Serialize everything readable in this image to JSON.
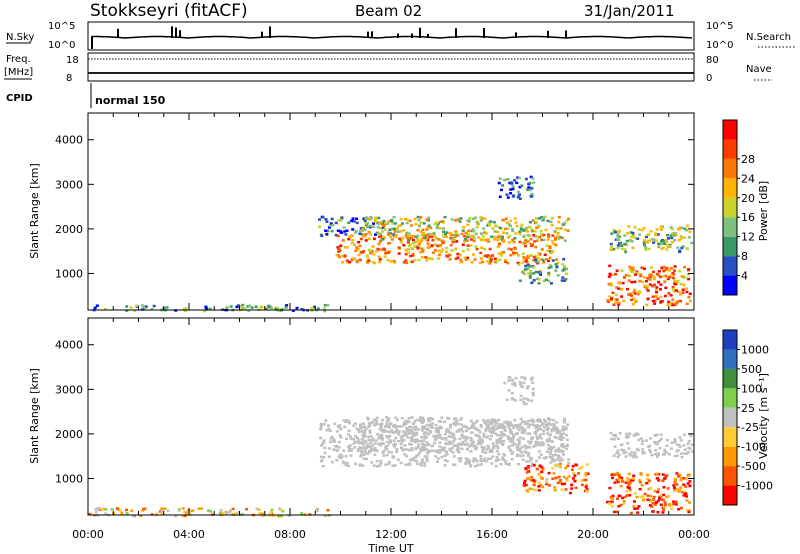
{
  "header": {
    "station": "Stokkseyri (fitACF)",
    "beam": "Beam 02",
    "date": "31/Jan/2011"
  },
  "strips": {
    "nsky_label": "N.Sky",
    "nsky_ticks": [
      "10^5",
      "10^0"
    ],
    "nsearch_label": "N.Search",
    "nsearch_ticks": [
      "10^5",
      "10^0"
    ],
    "freq_label": "Freq.",
    "freq_unit": "[MHz]",
    "freq_ticks": [
      "18",
      "8"
    ],
    "nave_label": "Nave",
    "nave_ticks": [
      "80",
      "0"
    ],
    "cpid_label": "CPID",
    "cpid_value": "normal 150"
  },
  "colors": {
    "power": [
      "#0000ff",
      "#2a4fc0",
      "#3b9a64",
      "#7fc07f",
      "#c8d22a",
      "#ffb400",
      "#ff7800",
      "#ff3c00",
      "#ff0000"
    ],
    "velocity": [
      "#1f3fbf",
      "#2f6fbf",
      "#3f8f3f",
      "#7fcf4f",
      "#c0c0c0",
      "#ffcc33",
      "#ff9900",
      "#ff5500",
      "#ff0000"
    ],
    "ground": "#b4b4b4"
  },
  "chart_data": [
    {
      "type": "heatmap",
      "name": "power-panel",
      "xlabel": "Time UT",
      "ylabel": "Slant Range [km]",
      "x_ticks": [
        "00:00",
        "04:00",
        "08:00",
        "12:00",
        "16:00",
        "20:00",
        "00:00"
      ],
      "xlim_hours": [
        0,
        24
      ],
      "y_ticks": [
        1000,
        2000,
        3000,
        4000
      ],
      "ylim_km": [
        180,
        4600
      ],
      "colorbar": {
        "label": "Power",
        "unit": "[dB]",
        "ticks": [
          4,
          8,
          12,
          16,
          20,
          24,
          28
        ],
        "range": [
          0,
          30
        ]
      },
      "echo_regions": [
        {
          "t0": 9.1,
          "t1": 12.3,
          "r0": 1850,
          "r1": 2300,
          "level": 0.25
        },
        {
          "t0": 9.8,
          "t1": 18.6,
          "r0": 1250,
          "r1": 1900,
          "level": 0.7
        },
        {
          "t0": 10.8,
          "t1": 19.0,
          "r0": 1750,
          "r1": 2300,
          "level": 0.5
        },
        {
          "t0": 16.2,
          "t1": 17.6,
          "r0": 2700,
          "r1": 3200,
          "level": 0.2
        },
        {
          "t0": 17.0,
          "t1": 18.9,
          "r0": 800,
          "r1": 1350,
          "level": 0.35
        },
        {
          "t0": 20.6,
          "t1": 23.9,
          "r0": 1500,
          "r1": 2100,
          "level": 0.4
        },
        {
          "t0": 20.5,
          "t1": 23.8,
          "r0": 300,
          "r1": 1200,
          "level": 0.75
        },
        {
          "t0": 0.0,
          "t1": 9.5,
          "r0": 180,
          "r1": 320,
          "level": 0.3
        }
      ]
    },
    {
      "type": "heatmap",
      "name": "velocity-panel",
      "xlabel": "Time UT",
      "ylabel": "Slant Range [km]",
      "x_ticks": [
        "00:00",
        "04:00",
        "08:00",
        "12:00",
        "16:00",
        "20:00",
        "00:00"
      ],
      "xlim_hours": [
        0,
        24
      ],
      "y_ticks": [
        1000,
        2000,
        3000,
        4000
      ],
      "ylim_km": [
        180,
        4600
      ],
      "colorbar": {
        "label": "Velocity",
        "unit": "[m s⁻¹]",
        "ticks": [
          1000,
          500,
          100,
          25,
          -25,
          -100,
          -500,
          -1000
        ]
      },
      "echo_regions": [
        {
          "t0": 9.1,
          "t1": 19.0,
          "r0": 1300,
          "r1": 2350,
          "level": 0.5
        },
        {
          "t0": 10.6,
          "t1": 18.9,
          "r0": 1600,
          "r1": 2400,
          "level": 0.5
        },
        {
          "t0": 16.4,
          "t1": 17.6,
          "r0": 2700,
          "r1": 3300,
          "level": 0.5
        },
        {
          "t0": 17.2,
          "t1": 19.8,
          "r0": 700,
          "r1": 1350,
          "level": 0.8
        },
        {
          "t0": 20.6,
          "t1": 23.9,
          "r0": 1500,
          "r1": 2050,
          "level": 0.5
        },
        {
          "t0": 20.5,
          "t1": 23.8,
          "r0": 250,
          "r1": 1150,
          "level": 0.82
        },
        {
          "t0": 0.0,
          "t1": 9.5,
          "r0": 180,
          "r1": 360,
          "level": 0.6
        }
      ]
    }
  ]
}
